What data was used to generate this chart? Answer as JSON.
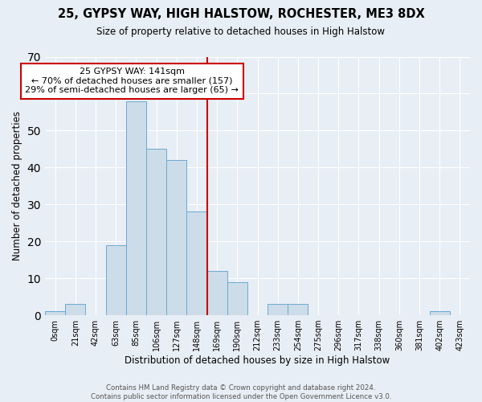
{
  "title1": "25, GYPSY WAY, HIGH HALSTOW, ROCHESTER, ME3 8DX",
  "title2": "Size of property relative to detached houses in High Halstow",
  "xlabel": "Distribution of detached houses by size in High Halstow",
  "ylabel": "Number of detached properties",
  "bar_labels": [
    "0sqm",
    "21sqm",
    "42sqm",
    "63sqm",
    "85sqm",
    "106sqm",
    "127sqm",
    "148sqm",
    "169sqm",
    "190sqm",
    "212sqm",
    "233sqm",
    "254sqm",
    "275sqm",
    "296sqm",
    "317sqm",
    "338sqm",
    "360sqm",
    "381sqm",
    "402sqm",
    "423sqm"
  ],
  "bar_heights": [
    1,
    3,
    0,
    19,
    58,
    45,
    42,
    28,
    12,
    9,
    0,
    3,
    3,
    0,
    0,
    0,
    0,
    0,
    0,
    1,
    0
  ],
  "bar_color": "#ccdce8",
  "bar_edge_color": "#6aaad4",
  "vline_x": 7.5,
  "vline_color": "#cc0000",
  "annotation_text": "25 GYPSY WAY: 141sqm\n← 70% of detached houses are smaller (157)\n29% of semi-detached houses are larger (65) →",
  "annotation_box_color": "#ffffff",
  "annotation_box_edge": "#cc0000",
  "ylim": [
    0,
    70
  ],
  "yticks": [
    0,
    10,
    20,
    30,
    40,
    50,
    60,
    70
  ],
  "background_color": "#e8eef5",
  "footer_text": "Contains HM Land Registry data © Crown copyright and database right 2024.\nContains public sector information licensed under the Open Government Licence v3.0."
}
